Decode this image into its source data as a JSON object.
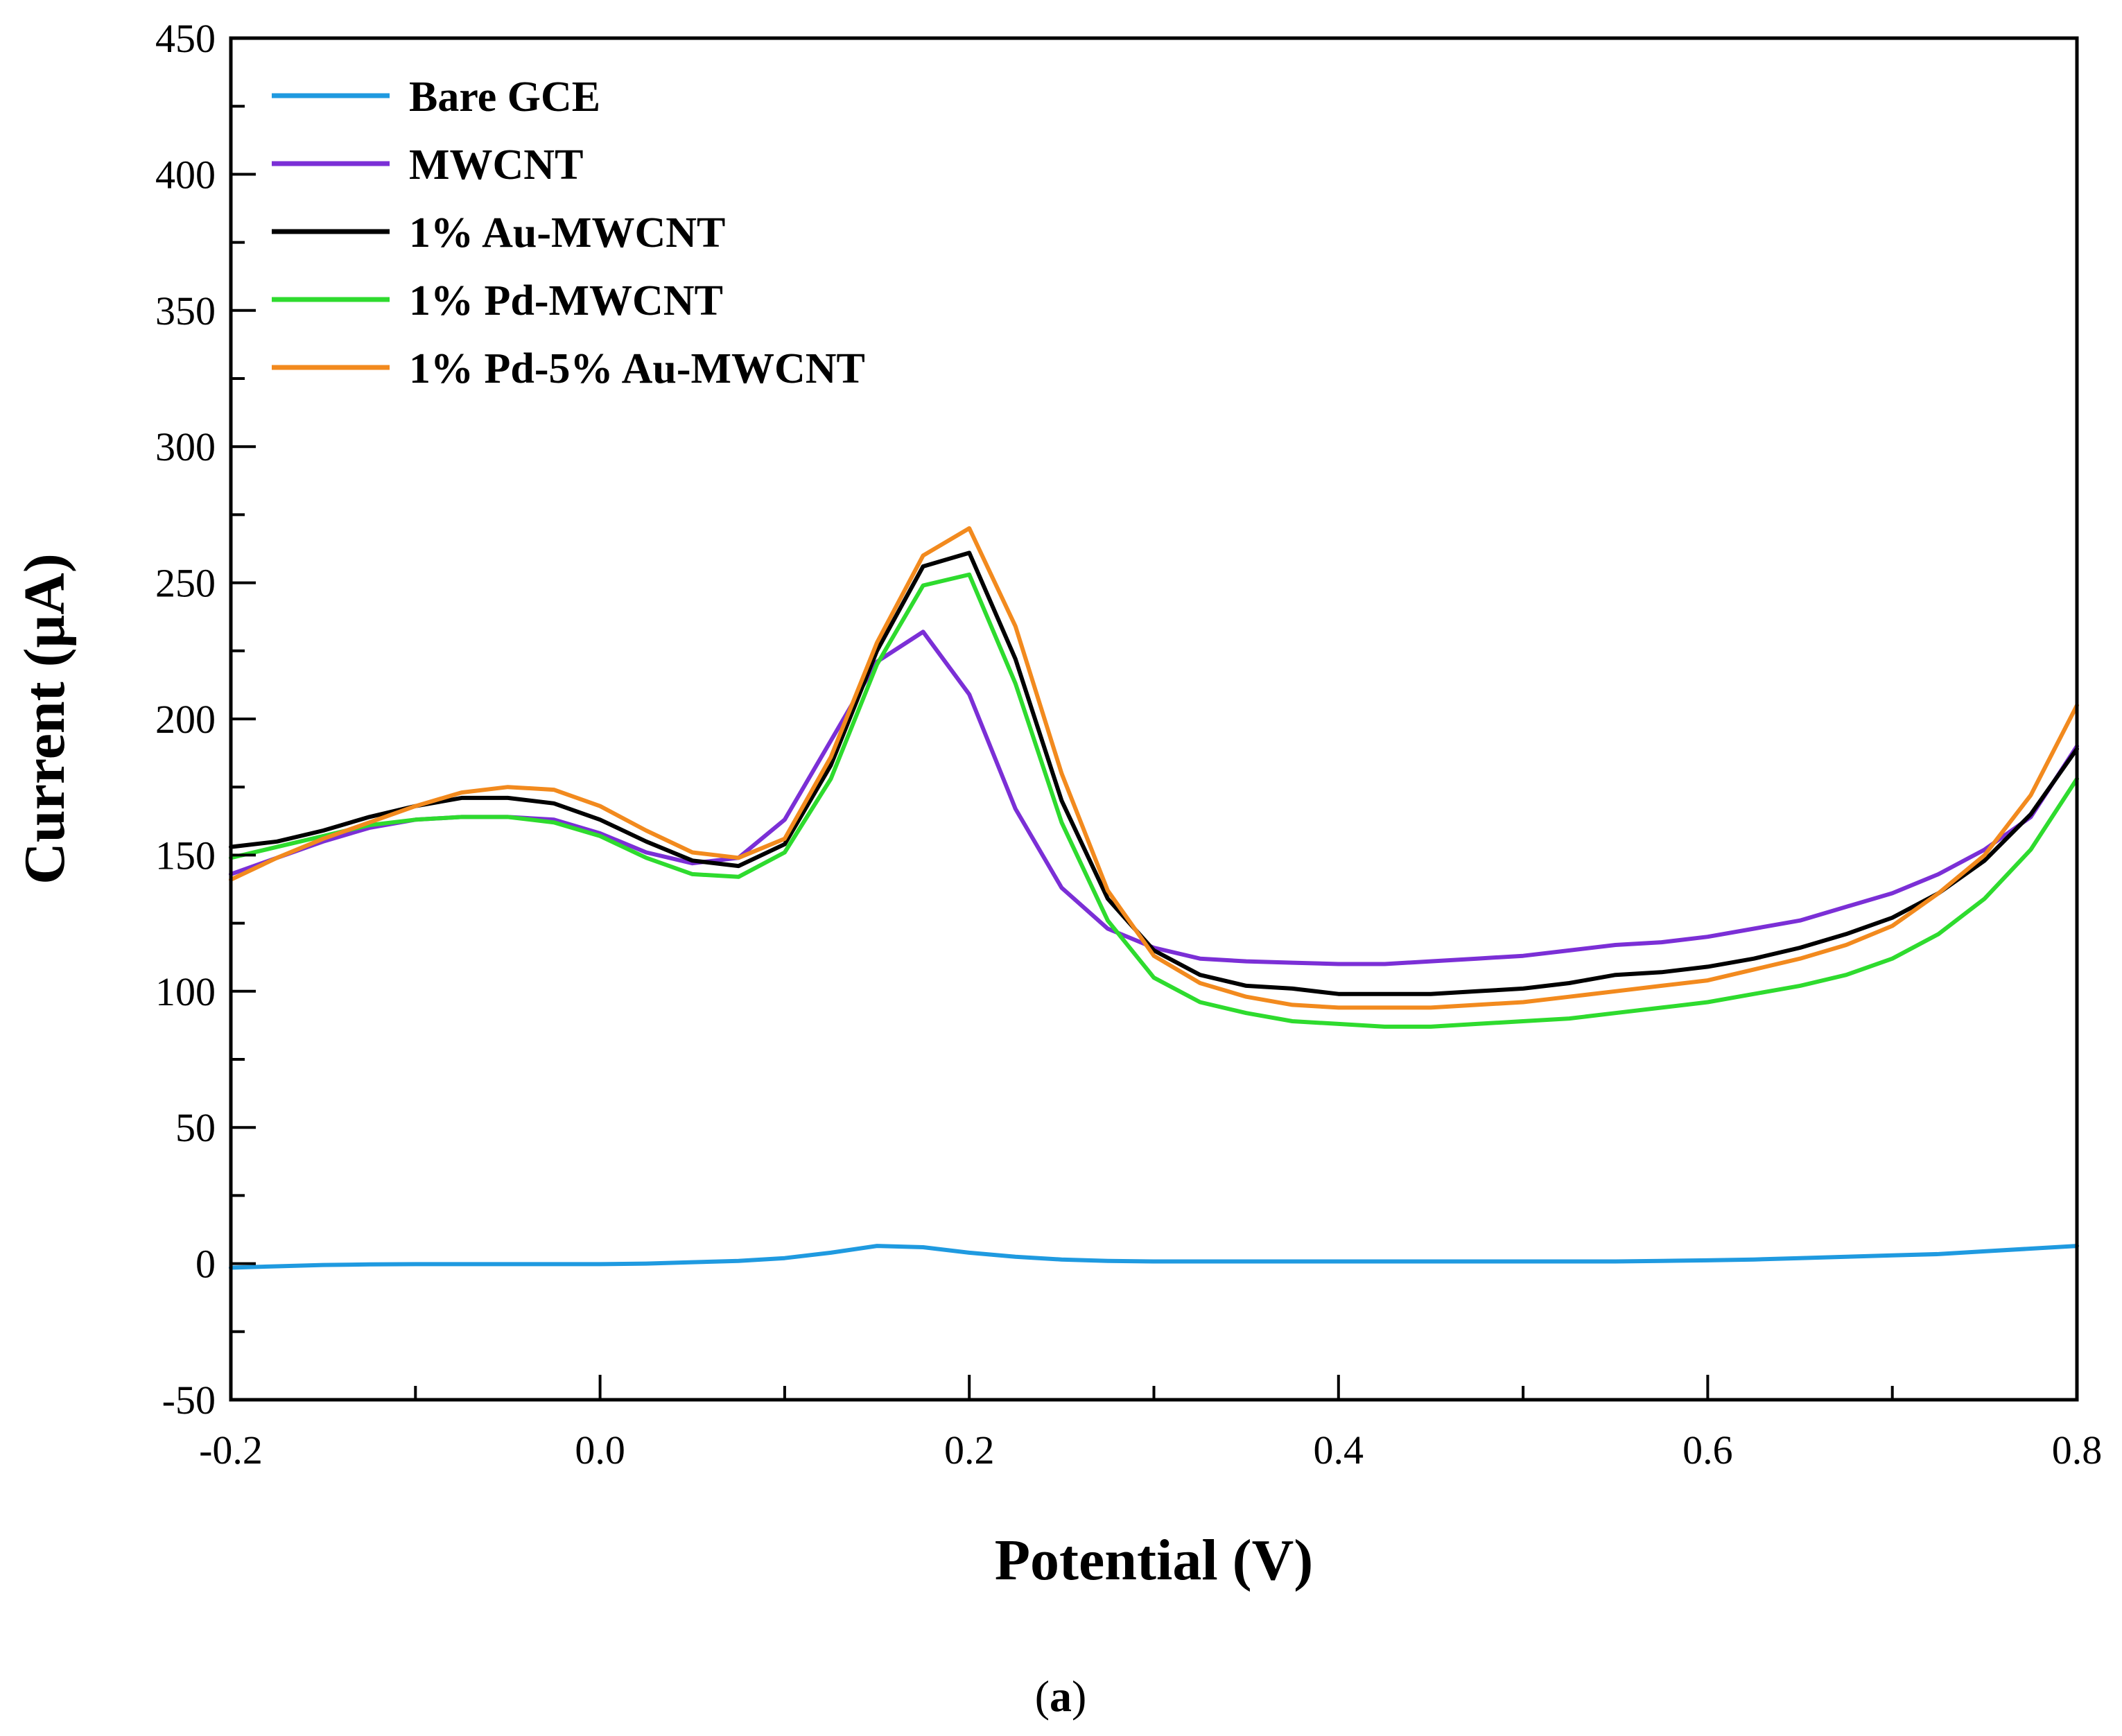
{
  "chart_data": {
    "type": "line",
    "title": "",
    "xlabel": "Potential (V)",
    "ylabel": "Current (μA)",
    "xlim": [
      -0.2,
      0.8
    ],
    "ylim": [
      -50,
      450
    ],
    "x_ticks": [
      "-0.2",
      "0.0",
      "0.2",
      "0.4",
      "0.6",
      "0.8"
    ],
    "x_tick_values": [
      -0.2,
      0.0,
      0.2,
      0.4,
      0.6,
      0.8
    ],
    "y_ticks": [
      "-50",
      "0",
      "50",
      "100",
      "150",
      "200",
      "250",
      "300",
      "350",
      "400",
      "450"
    ],
    "y_tick_values": [
      -50,
      0,
      50,
      100,
      150,
      200,
      250,
      300,
      350,
      400,
      450
    ],
    "legend_position": "top-left",
    "grid": false,
    "x": [
      -0.2,
      -0.175,
      -0.15,
      -0.125,
      -0.1,
      -0.075,
      -0.05,
      -0.025,
      0.0,
      0.025,
      0.05,
      0.075,
      0.1,
      0.125,
      0.15,
      0.175,
      0.2,
      0.225,
      0.25,
      0.275,
      0.3,
      0.325,
      0.35,
      0.375,
      0.4,
      0.425,
      0.45,
      0.475,
      0.5,
      0.525,
      0.55,
      0.575,
      0.6,
      0.625,
      0.65,
      0.675,
      0.7,
      0.725,
      0.75,
      0.775,
      0.8
    ],
    "series": [
      {
        "name": "Bare GCE",
        "color": "#1f9ae0",
        "values": [
          -1.5,
          -1,
          -0.5,
          -0.3,
          -0.2,
          -0.2,
          -0.2,
          -0.2,
          -0.2,
          0,
          0.5,
          1,
          2,
          4,
          6.5,
          6,
          4,
          2.5,
          1.5,
          1,
          0.8,
          0.8,
          0.8,
          0.8,
          0.8,
          0.8,
          0.8,
          0.8,
          0.8,
          0.8,
          0.8,
          1,
          1.2,
          1.5,
          2,
          2.5,
          3,
          3.5,
          4.5,
          5.5,
          6.5
        ]
      },
      {
        "name": "MWCNT",
        "color": "#7b2fd6",
        "values": [
          143,
          149,
          155,
          160,
          163,
          164,
          164,
          163,
          158,
          151,
          147,
          149,
          163,
          192,
          221,
          232,
          209,
          167,
          138,
          123,
          116,
          112,
          111,
          110.5,
          110,
          110,
          111,
          112,
          113,
          115,
          117,
          118,
          120,
          123,
          126,
          131,
          136,
          143,
          152,
          164,
          190
        ]
      },
      {
        "name": "1% Au-MWCNT",
        "color": "#000000",
        "values": [
          153,
          155,
          159,
          164,
          168,
          171,
          171,
          169,
          163,
          155,
          148,
          146,
          154,
          183,
          225,
          256,
          261,
          222,
          170,
          134,
          115,
          106,
          102,
          101,
          99,
          99,
          99,
          100,
          101,
          103,
          106,
          107,
          109,
          112,
          116,
          121,
          127,
          136,
          148,
          165,
          189
        ]
      },
      {
        "name": "1% Pd-MWCNT",
        "color": "#2edb2e",
        "values": [
          149,
          153,
          157,
          161,
          163,
          164,
          164,
          162,
          157,
          149,
          143,
          142,
          151,
          178,
          220,
          249,
          253,
          213,
          162,
          126,
          105,
          96,
          92,
          89,
          88,
          87,
          87,
          88,
          89,
          90,
          92,
          94,
          96,
          99,
          102,
          106,
          112,
          121,
          134,
          152,
          178
        ]
      },
      {
        "name": "1% Pd-5% Au-MWCNT",
        "color": "#f28a1e",
        "values": [
          141,
          149,
          156,
          162,
          168,
          173,
          175,
          174,
          168,
          159,
          151,
          149,
          156,
          186,
          228,
          260,
          270,
          234,
          180,
          137,
          113,
          103,
          98,
          95,
          94,
          94,
          94,
          95,
          96,
          98,
          100,
          102,
          104,
          108,
          112,
          117,
          124,
          136,
          150,
          172,
          205
        ]
      }
    ],
    "caption_open": "(",
    "caption_label": "a",
    "caption_close": ")"
  }
}
